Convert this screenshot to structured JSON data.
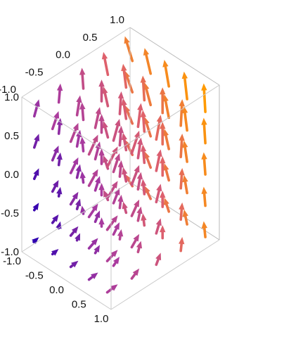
{
  "chart_data": {
    "type": "vector-field-3d",
    "title": "",
    "xlabel": "",
    "ylabel": "",
    "zlabel": "",
    "xlim": [
      -1,
      1
    ],
    "ylim": [
      -1,
      1
    ],
    "zlim": [
      -1,
      1
    ],
    "x_ticks": [
      "-1.0",
      "-0.5",
      "0.0",
      "0.5",
      "1.0"
    ],
    "y_ticks": [
      "-1.0",
      "-0.5",
      "0.0",
      "0.5",
      "1.0"
    ],
    "z_ticks": [
      "-1.0",
      "-0.5",
      "0.0",
      "0.5",
      "1.0"
    ],
    "grid": false,
    "color_scale": [
      "#ff9a00",
      "#e0626a",
      "#a83aa0",
      "#2f00b0"
    ],
    "field": "approximately (-1 - y, 1 + 0.4x, 0.5 + 0.6z), colored by magnitude",
    "grid_samples_per_axis": 5
  }
}
